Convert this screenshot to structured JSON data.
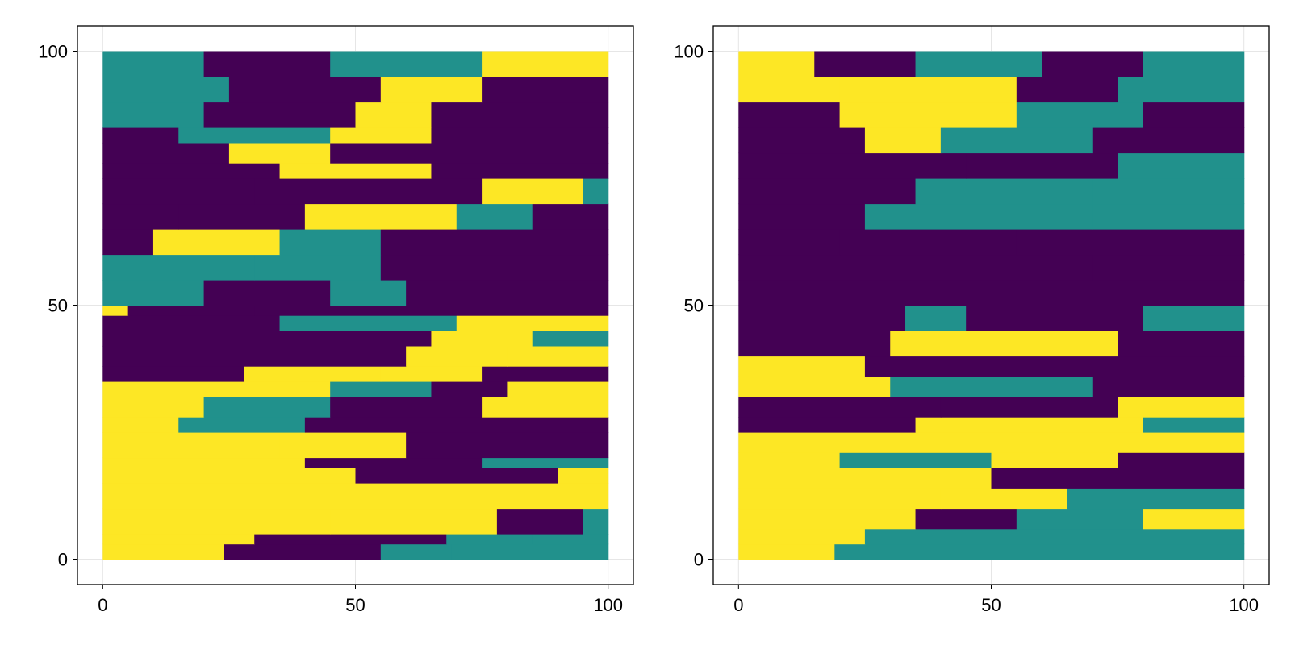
{
  "chart_data": [
    {
      "type": "heatmap",
      "title": "",
      "xlabel": "",
      "ylabel": "",
      "xlim": [
        -5,
        105
      ],
      "ylim": [
        -5,
        105
      ],
      "xticks": [
        0,
        50,
        100
      ],
      "yticks": [
        0,
        50,
        100
      ],
      "xtick_labels": [
        "0",
        "50",
        "100"
      ],
      "ytick_labels": [
        "0",
        "50",
        "100"
      ],
      "grid": true,
      "colormap": [
        "#440154",
        "#21918c",
        "#fde725"
      ],
      "category_values": [
        0,
        1,
        2
      ],
      "grid_size": [
        100,
        100
      ],
      "rows_bottom_to_top": [
        {
          "y0": 0,
          "y1": 3,
          "x": [
            0,
            24,
            55,
            69,
            100
          ],
          "c": [
            2,
            0,
            1,
            1
          ]
        },
        {
          "y0": 3,
          "y1": 5,
          "x": [
            0,
            30,
            68,
            85,
            100
          ],
          "c": [
            2,
            0,
            1,
            1
          ]
        },
        {
          "y0": 5,
          "y1": 10,
          "x": [
            0,
            45,
            78,
            95,
            100
          ],
          "c": [
            2,
            2,
            0,
            1
          ]
        },
        {
          "y0": 10,
          "y1": 15,
          "x": [
            0,
            50,
            100
          ],
          "c": [
            2,
            2
          ]
        },
        {
          "y0": 15,
          "y1": 18,
          "x": [
            0,
            50,
            90,
            100
          ],
          "c": [
            2,
            0,
            2
          ]
        },
        {
          "y0": 18,
          "y1": 20,
          "x": [
            0,
            40,
            75,
            100
          ],
          "c": [
            2,
            0,
            1
          ]
        },
        {
          "y0": 20,
          "y1": 25,
          "x": [
            0,
            35,
            60,
            100
          ],
          "c": [
            2,
            2,
            0
          ]
        },
        {
          "y0": 25,
          "y1": 28,
          "x": [
            0,
            15,
            40,
            100
          ],
          "c": [
            2,
            1,
            0
          ]
        },
        {
          "y0": 28,
          "y1": 32,
          "x": [
            0,
            20,
            45,
            75,
            100
          ],
          "c": [
            2,
            1,
            0,
            2
          ]
        },
        {
          "y0": 32,
          "y1": 35,
          "x": [
            0,
            45,
            65,
            80,
            100
          ],
          "c": [
            2,
            1,
            0,
            2
          ]
        },
        {
          "y0": 35,
          "y1": 38,
          "x": [
            0,
            28,
            55,
            75,
            100
          ],
          "c": [
            0,
            2,
            2,
            0
          ]
        },
        {
          "y0": 38,
          "y1": 42,
          "x": [
            0,
            60,
            80,
            100
          ],
          "c": [
            0,
            2,
            2
          ]
        },
        {
          "y0": 42,
          "y1": 45,
          "x": [
            0,
            65,
            85,
            100
          ],
          "c": [
            0,
            2,
            1
          ]
        },
        {
          "y0": 45,
          "y1": 48,
          "x": [
            0,
            35,
            70,
            100
          ],
          "c": [
            0,
            1,
            2
          ]
        },
        {
          "y0": 48,
          "y1": 50,
          "x": [
            0,
            5,
            30,
            100
          ],
          "c": [
            2,
            0,
            0
          ]
        },
        {
          "y0": 50,
          "y1": 55,
          "x": [
            0,
            20,
            45,
            60,
            100
          ],
          "c": [
            1,
            0,
            1,
            0
          ]
        },
        {
          "y0": 55,
          "y1": 60,
          "x": [
            0,
            30,
            55,
            100
          ],
          "c": [
            1,
            1,
            0
          ]
        },
        {
          "y0": 60,
          "y1": 65,
          "x": [
            0,
            10,
            35,
            55,
            100
          ],
          "c": [
            0,
            2,
            1,
            0
          ]
        },
        {
          "y0": 65,
          "y1": 70,
          "x": [
            0,
            15,
            40,
            70,
            85,
            100
          ],
          "c": [
            0,
            0,
            2,
            1,
            0
          ]
        },
        {
          "y0": 70,
          "y1": 75,
          "x": [
            0,
            30,
            75,
            95,
            100
          ],
          "c": [
            0,
            0,
            2,
            1
          ]
        },
        {
          "y0": 75,
          "y1": 78,
          "x": [
            0,
            35,
            65,
            100
          ],
          "c": [
            0,
            2,
            0
          ]
        },
        {
          "y0": 78,
          "y1": 82,
          "x": [
            0,
            25,
            45,
            100
          ],
          "c": [
            0,
            2,
            0
          ]
        },
        {
          "y0": 82,
          "y1": 85,
          "x": [
            0,
            15,
            45,
            65,
            100
          ],
          "c": [
            0,
            1,
            2,
            0
          ]
        },
        {
          "y0": 85,
          "y1": 90,
          "x": [
            0,
            20,
            50,
            65,
            100
          ],
          "c": [
            1,
            0,
            2,
            0
          ]
        },
        {
          "y0": 90,
          "y1": 95,
          "x": [
            0,
            25,
            55,
            75,
            100
          ],
          "c": [
            1,
            0,
            2,
            0
          ]
        },
        {
          "y0": 95,
          "y1": 100,
          "x": [
            0,
            20,
            45,
            75,
            100
          ],
          "c": [
            1,
            0,
            1,
            2
          ]
        }
      ]
    },
    {
      "type": "heatmap",
      "title": "",
      "xlabel": "",
      "ylabel": "",
      "xlim": [
        -5,
        105
      ],
      "ylim": [
        -5,
        105
      ],
      "xticks": [
        0,
        50,
        100
      ],
      "yticks": [
        0,
        50,
        100
      ],
      "xtick_labels": [
        "0",
        "50",
        "100"
      ],
      "ytick_labels": [
        "0",
        "50",
        "100"
      ],
      "grid": true,
      "colormap": [
        "#440154",
        "#21918c",
        "#fde725"
      ],
      "category_values": [
        0,
        1,
        2
      ],
      "grid_size": [
        100,
        100
      ],
      "rows_bottom_to_top": [
        {
          "y0": 0,
          "y1": 3,
          "x": [
            0,
            19,
            65,
            100
          ],
          "c": [
            2,
            1,
            1
          ]
        },
        {
          "y0": 3,
          "y1": 6,
          "x": [
            0,
            25,
            100
          ],
          "c": [
            2,
            1
          ]
        },
        {
          "y0": 6,
          "y1": 10,
          "x": [
            0,
            35,
            55,
            80,
            100
          ],
          "c": [
            2,
            0,
            1,
            2
          ]
        },
        {
          "y0": 10,
          "y1": 14,
          "x": [
            0,
            40,
            65,
            100
          ],
          "c": [
            2,
            2,
            1
          ]
        },
        {
          "y0": 14,
          "y1": 18,
          "x": [
            0,
            50,
            100
          ],
          "c": [
            2,
            0
          ]
        },
        {
          "y0": 18,
          "y1": 21,
          "x": [
            0,
            20,
            50,
            75,
            100
          ],
          "c": [
            2,
            1,
            2,
            0
          ]
        },
        {
          "y0": 21,
          "y1": 25,
          "x": [
            0,
            60,
            100
          ],
          "c": [
            2,
            2
          ]
        },
        {
          "y0": 25,
          "y1": 28,
          "x": [
            0,
            35,
            80,
            100
          ],
          "c": [
            0,
            2,
            1
          ]
        },
        {
          "y0": 28,
          "y1": 32,
          "x": [
            0,
            40,
            75,
            100
          ],
          "c": [
            0,
            0,
            2
          ]
        },
        {
          "y0": 32,
          "y1": 36,
          "x": [
            0,
            30,
            70,
            100
          ],
          "c": [
            2,
            1,
            0
          ]
        },
        {
          "y0": 36,
          "y1": 40,
          "x": [
            0,
            25,
            60,
            100
          ],
          "c": [
            2,
            0,
            0
          ]
        },
        {
          "y0": 40,
          "y1": 45,
          "x": [
            0,
            30,
            75,
            100
          ],
          "c": [
            0,
            2,
            0
          ]
        },
        {
          "y0": 45,
          "y1": 50,
          "x": [
            0,
            33,
            45,
            80,
            100
          ],
          "c": [
            0,
            1,
            0,
            1
          ]
        },
        {
          "y0": 50,
          "y1": 55,
          "x": [
            0,
            100
          ],
          "c": [
            0
          ]
        },
        {
          "y0": 55,
          "y1": 60,
          "x": [
            0,
            70,
            100
          ],
          "c": [
            0,
            0
          ]
        },
        {
          "y0": 60,
          "y1": 65,
          "x": [
            0,
            20,
            55,
            100
          ],
          "c": [
            0,
            0,
            0
          ]
        },
        {
          "y0": 65,
          "y1": 70,
          "x": [
            0,
            25,
            70,
            100
          ],
          "c": [
            0,
            1,
            1
          ]
        },
        {
          "y0": 70,
          "y1": 75,
          "x": [
            0,
            35,
            70,
            100
          ],
          "c": [
            0,
            1,
            1
          ]
        },
        {
          "y0": 75,
          "y1": 80,
          "x": [
            0,
            45,
            75,
            100
          ],
          "c": [
            0,
            0,
            1
          ]
        },
        {
          "y0": 80,
          "y1": 85,
          "x": [
            0,
            25,
            40,
            70,
            100
          ],
          "c": [
            0,
            2,
            1,
            0
          ]
        },
        {
          "y0": 85,
          "y1": 90,
          "x": [
            0,
            20,
            55,
            80,
            100
          ],
          "c": [
            0,
            2,
            1,
            0
          ]
        },
        {
          "y0": 90,
          "y1": 95,
          "x": [
            0,
            20,
            55,
            75,
            100
          ],
          "c": [
            2,
            2,
            0,
            1
          ]
        },
        {
          "y0": 95,
          "y1": 100,
          "x": [
            0,
            15,
            35,
            60,
            80,
            100
          ],
          "c": [
            2,
            0,
            1,
            0,
            1
          ]
        }
      ]
    }
  ]
}
